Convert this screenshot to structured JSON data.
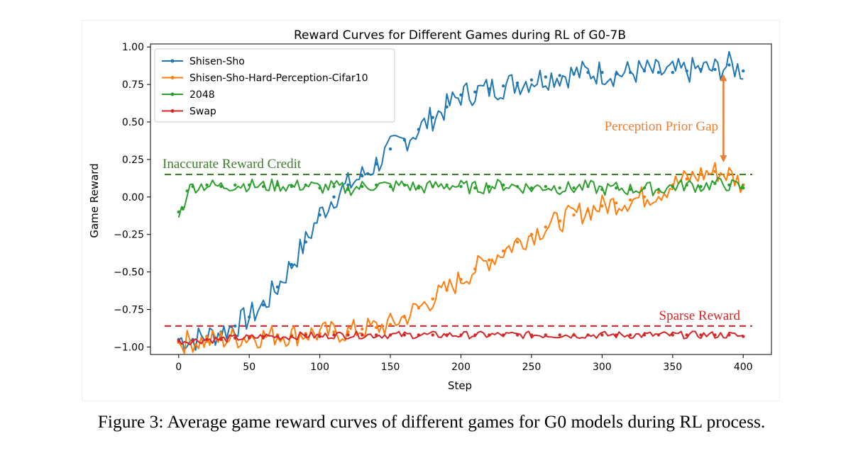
{
  "chart_data": {
    "type": "line",
    "title": "Reward Curves for Different Games during RL of G0-7B",
    "xlabel": "Step",
    "ylabel": "Game Reward",
    "xlim": [
      -20,
      420
    ],
    "ylim": [
      -1.05,
      1.02
    ],
    "xticks": [
      0,
      50,
      100,
      150,
      200,
      250,
      300,
      350,
      400
    ],
    "yticks": [
      -1.0,
      -0.75,
      -0.5,
      -0.25,
      0.0,
      0.25,
      0.5,
      0.75,
      1.0
    ],
    "xtick_labels": [
      "0",
      "50",
      "100",
      "150",
      "200",
      "250",
      "300",
      "350",
      "400"
    ],
    "ytick_labels": [
      "−1.00",
      "−0.75",
      "−0.50",
      "−0.25",
      "0.00",
      "0.25",
      "0.50",
      "0.75",
      "1.00"
    ],
    "legend_position": "upper-left",
    "series": [
      {
        "name": "Shisen-Sho",
        "color": "#1f77b4",
        "x": [
          0,
          10,
          20,
          30,
          40,
          50,
          60,
          70,
          80,
          90,
          100,
          110,
          120,
          130,
          140,
          150,
          160,
          170,
          180,
          190,
          200,
          210,
          220,
          230,
          240,
          250,
          260,
          270,
          280,
          290,
          300,
          310,
          320,
          330,
          340,
          350,
          360,
          370,
          380,
          390,
          400
        ],
        "values": [
          -0.95,
          -0.95,
          -0.93,
          -0.9,
          -0.86,
          -0.8,
          -0.72,
          -0.6,
          -0.45,
          -0.3,
          -0.12,
          0.0,
          0.08,
          0.14,
          0.22,
          0.32,
          0.38,
          0.45,
          0.53,
          0.6,
          0.68,
          0.7,
          0.72,
          0.74,
          0.76,
          0.78,
          0.8,
          0.81,
          0.82,
          0.83,
          0.83,
          0.82,
          0.83,
          0.84,
          0.83,
          0.83,
          0.84,
          0.85,
          0.85,
          0.88,
          0.84
        ]
      },
      {
        "name": "Shisen-Sho-Hard-Perception-Cifar10",
        "color": "#ff7f0e",
        "x": [
          0,
          10,
          20,
          30,
          40,
          50,
          60,
          70,
          80,
          90,
          100,
          110,
          120,
          130,
          140,
          150,
          160,
          170,
          180,
          190,
          200,
          210,
          220,
          230,
          240,
          250,
          260,
          270,
          280,
          290,
          300,
          310,
          320,
          330,
          340,
          350,
          360,
          370,
          380,
          390,
          400
        ],
        "values": [
          -0.97,
          -0.96,
          -0.96,
          -0.95,
          -0.94,
          -0.93,
          -0.93,
          -0.92,
          -0.92,
          -0.91,
          -0.91,
          -0.9,
          -0.9,
          -0.88,
          -0.87,
          -0.85,
          -0.8,
          -0.74,
          -0.68,
          -0.62,
          -0.55,
          -0.48,
          -0.42,
          -0.36,
          -0.3,
          -0.25,
          -0.2,
          -0.16,
          -0.12,
          -0.09,
          -0.06,
          -0.04,
          -0.02,
          0.0,
          0.03,
          0.08,
          0.12,
          0.15,
          0.17,
          0.15,
          0.08
        ]
      },
      {
        "name": "2048",
        "color": "#2ca02c",
        "x": [
          0,
          3,
          6,
          10,
          20,
          30,
          40,
          50,
          60,
          70,
          80,
          90,
          100,
          110,
          120,
          130,
          140,
          150,
          160,
          170,
          180,
          190,
          200,
          210,
          220,
          230,
          240,
          250,
          260,
          270,
          280,
          290,
          300,
          310,
          320,
          330,
          340,
          350,
          360,
          370,
          380,
          390,
          400
        ],
        "values": [
          -0.1,
          -0.08,
          0.04,
          0.07,
          0.08,
          0.07,
          0.08,
          0.08,
          0.07,
          0.08,
          0.07,
          0.08,
          0.06,
          0.07,
          0.05,
          0.07,
          0.08,
          0.07,
          0.08,
          0.06,
          0.07,
          0.08,
          0.07,
          0.06,
          0.07,
          0.08,
          0.07,
          0.06,
          0.07,
          0.06,
          0.06,
          0.07,
          0.05,
          0.06,
          0.05,
          0.06,
          0.05,
          0.07,
          0.08,
          0.07,
          0.09,
          0.08,
          0.06
        ]
      },
      {
        "name": "Swap",
        "color": "#d62728",
        "x": [
          0,
          10,
          20,
          30,
          40,
          50,
          60,
          70,
          80,
          90,
          100,
          110,
          120,
          130,
          140,
          150,
          160,
          170,
          180,
          190,
          200,
          210,
          220,
          230,
          240,
          250,
          260,
          270,
          280,
          290,
          300,
          310,
          320,
          330,
          340,
          350,
          360,
          370,
          380,
          390,
          400
        ],
        "values": [
          -0.96,
          -0.96,
          -0.95,
          -0.95,
          -0.94,
          -0.94,
          -0.93,
          -0.93,
          -0.93,
          -0.92,
          -0.93,
          -0.92,
          -0.92,
          -0.92,
          -0.92,
          -0.92,
          -0.92,
          -0.92,
          -0.92,
          -0.92,
          -0.92,
          -0.92,
          -0.92,
          -0.92,
          -0.92,
          -0.92,
          -0.92,
          -0.92,
          -0.92,
          -0.92,
          -0.92,
          -0.92,
          -0.92,
          -0.92,
          -0.92,
          -0.92,
          -0.92,
          -0.92,
          -0.92,
          -0.92,
          -0.93
        ]
      }
    ],
    "reference_lines": [
      {
        "name": "inaccurate-reward-line",
        "y": 0.15,
        "color": "#3e7d2a",
        "label": "Inaccurate Reward Credit"
      },
      {
        "name": "sparse-reward-line",
        "y": -0.86,
        "color": "#d62728",
        "label": "Sparse Reward"
      }
    ],
    "annotations": [
      {
        "name": "perception-prior-gap",
        "label": "Perception Prior Gap",
        "color": "#ed7d31",
        "x": 386,
        "y_from": 0.82,
        "y_to": 0.23
      }
    ]
  },
  "caption": "Figure 3: Average game reward curves of different games for G0 models during RL process."
}
